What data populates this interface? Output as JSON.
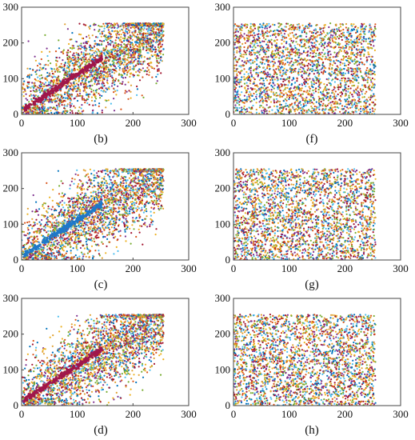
{
  "chart_data": [
    {
      "type": "scatter",
      "caption": "(b)",
      "pattern": "correlated",
      "diagonal_series_color": "#a0174b",
      "xlim": [
        0,
        300
      ],
      "ylim": [
        0,
        300
      ],
      "xticks": [
        "0",
        "100",
        "200",
        "300"
      ],
      "yticks": [
        "0",
        "100",
        "200",
        "300"
      ],
      "x_range": [
        0,
        255
      ],
      "y_range": [
        0,
        255
      ],
      "grid": false
    },
    {
      "type": "scatter",
      "caption": "(f)",
      "pattern": "uniform",
      "xlim": [
        0,
        300
      ],
      "ylim": [
        0,
        300
      ],
      "xticks": [
        "0",
        "100",
        "200",
        "300"
      ],
      "yticks": [
        "0",
        "100",
        "200",
        "300"
      ],
      "x_range": [
        0,
        255
      ],
      "y_range": [
        0,
        255
      ],
      "grid": false
    },
    {
      "type": "scatter",
      "caption": "(c)",
      "pattern": "correlated",
      "diagonal_series_color": "#1f78c8",
      "xlim": [
        0,
        300
      ],
      "ylim": [
        0,
        300
      ],
      "xticks": [
        "0",
        "100",
        "200",
        "300"
      ],
      "yticks": [
        "0",
        "100",
        "200",
        "300"
      ],
      "x_range": [
        0,
        255
      ],
      "y_range": [
        0,
        255
      ],
      "grid": false
    },
    {
      "type": "scatter",
      "caption": "(g)",
      "pattern": "uniform",
      "xlim": [
        0,
        300
      ],
      "ylim": [
        0,
        300
      ],
      "xticks": [
        "0",
        "100",
        "200",
        "300"
      ],
      "yticks": [
        "0",
        "100",
        "200",
        "300"
      ],
      "x_range": [
        0,
        255
      ],
      "y_range": [
        0,
        255
      ],
      "grid": false
    },
    {
      "type": "scatter",
      "caption": "(d)",
      "pattern": "correlated",
      "diagonal_series_color": "#a0174b",
      "xlim": [
        0,
        300
      ],
      "ylim": [
        0,
        300
      ],
      "xticks": [
        "0",
        "100",
        "200",
        "300"
      ],
      "yticks": [
        "0",
        "100",
        "200",
        "300"
      ],
      "x_range": [
        0,
        255
      ],
      "y_range": [
        0,
        255
      ],
      "grid": false
    },
    {
      "type": "scatter",
      "caption": "(h)",
      "pattern": "uniform",
      "xlim": [
        0,
        300
      ],
      "ylim": [
        0,
        300
      ],
      "xticks": [
        "0",
        "100",
        "200",
        "300"
      ],
      "yticks": [
        "0",
        "100",
        "200",
        "300"
      ],
      "x_range": [
        0,
        255
      ],
      "y_range": [
        0,
        255
      ],
      "grid": false
    }
  ],
  "point_colors": [
    "#d95319",
    "#edb120",
    "#7e2f8e",
    "#77ac30",
    "#4dbeee",
    "#a2142f",
    "#0072bd",
    "#e0a030"
  ]
}
